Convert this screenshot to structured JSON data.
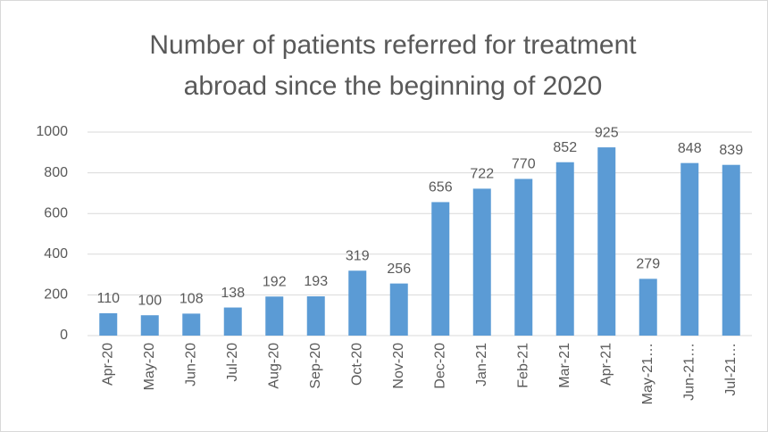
{
  "chart_data": {
    "type": "bar",
    "title": [
      "Number of patients referred for treatment",
      "abroad since the beginning of 2020"
    ],
    "categories": [
      "Apr-20",
      "May-20",
      "Jun-20",
      "Jul-20",
      "Aug-20",
      "Sep-20",
      "Oct-20",
      "Nov-20",
      "Dec-20",
      "Jan-21",
      "Feb-21",
      "Mar-21",
      "Apr-21",
      "May-21…",
      "Jun-21…",
      "Jul-21…"
    ],
    "values": [
      110,
      100,
      108,
      138,
      192,
      193,
      319,
      256,
      656,
      722,
      770,
      852,
      925,
      279,
      848,
      839
    ],
    "color": "#5b9bd5",
    "ylim": [
      0,
      1000
    ],
    "yticks": [
      0,
      200,
      400,
      600,
      800,
      1000
    ],
    "grid": true
  }
}
